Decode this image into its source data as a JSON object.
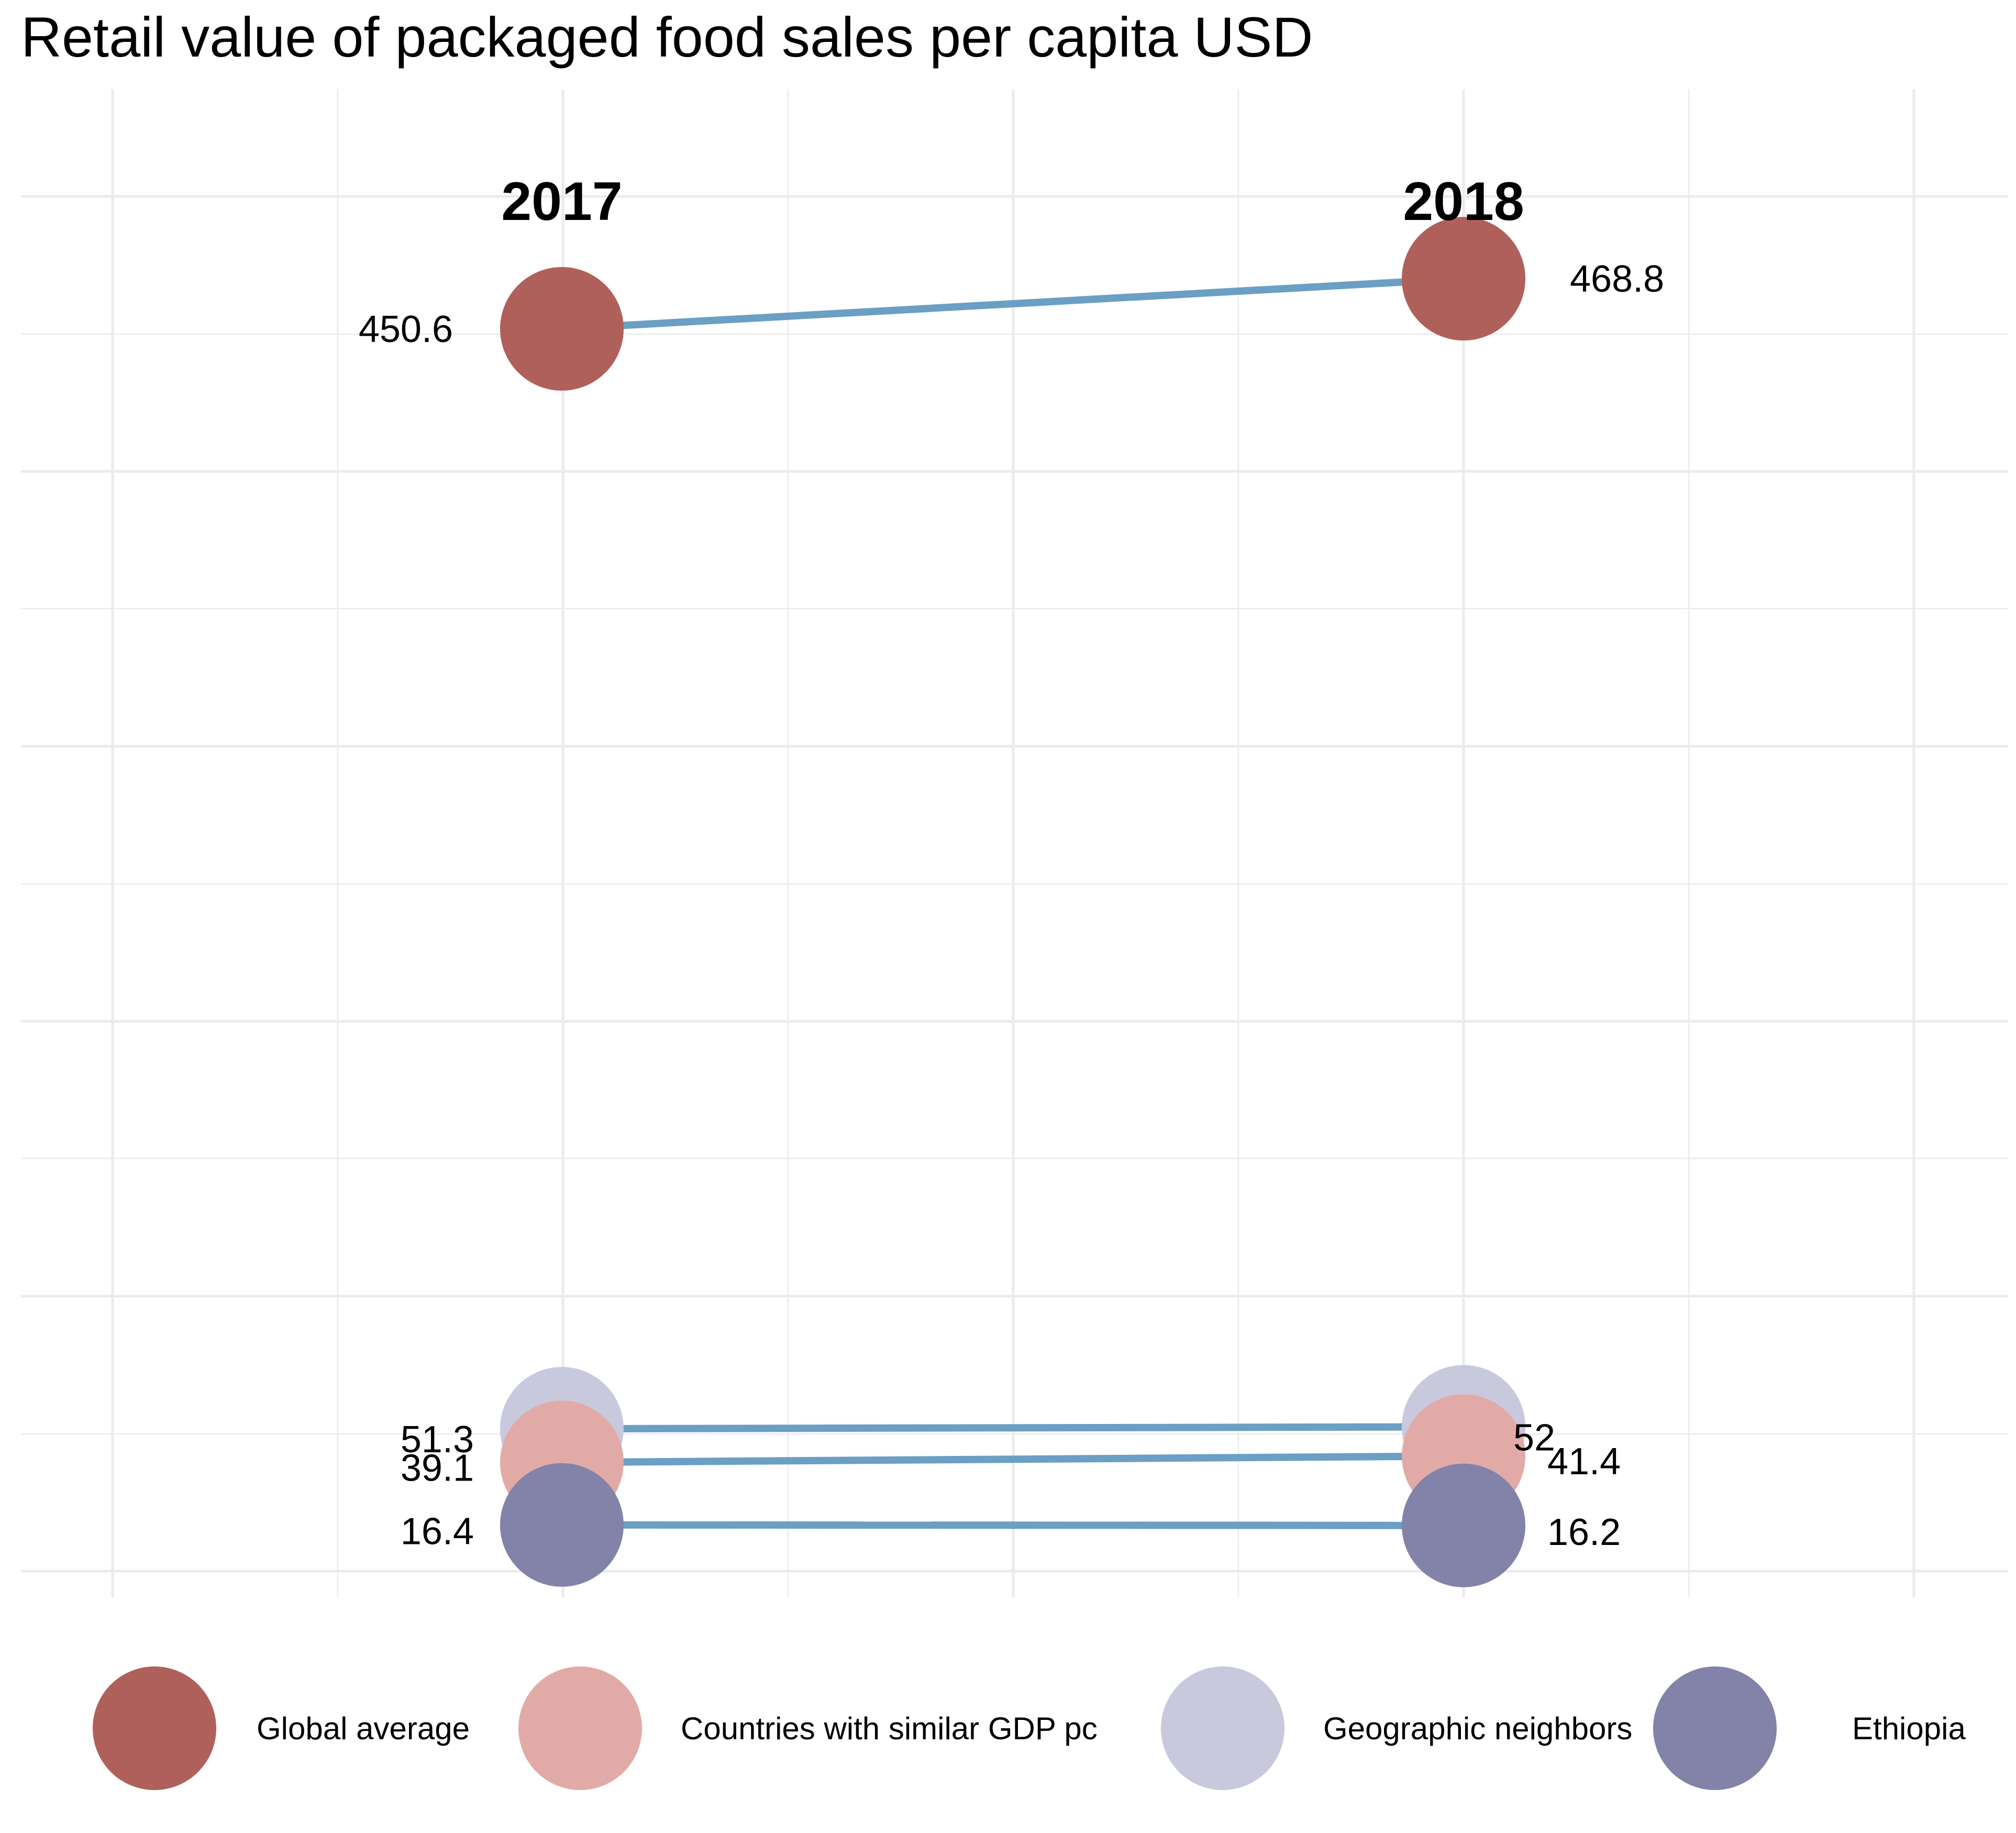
{
  "chart_data": {
    "type": "line",
    "title": "Retail value of packaged food sales per capita USD",
    "x": [
      "2017",
      "2018"
    ],
    "series": [
      {
        "name": "Global average",
        "values": [
          450.6,
          468.8
        ],
        "labels": [
          "450.6",
          "468.8"
        ],
        "color": "#b0605a"
      },
      {
        "name": "Countries with similar GDP pc",
        "values": [
          39.1,
          41.4
        ],
        "labels": [
          "39.1",
          "41.4"
        ],
        "color": "#e2aaa6"
      },
      {
        "name": "Geographic neighbors",
        "values": [
          51.3,
          52
        ],
        "labels": [
          "51.3",
          "52"
        ],
        "color": "#c8c9dd"
      },
      {
        "name": "Ethiopia",
        "values": [
          16.4,
          16.2
        ],
        "labels": [
          "16.4",
          "16.2"
        ],
        "color": "#8382a9"
      }
    ],
    "ylim": [
      0,
      500
    ],
    "line_color": "#6b9fc3",
    "grid": true,
    "legend_position": "bottom"
  }
}
